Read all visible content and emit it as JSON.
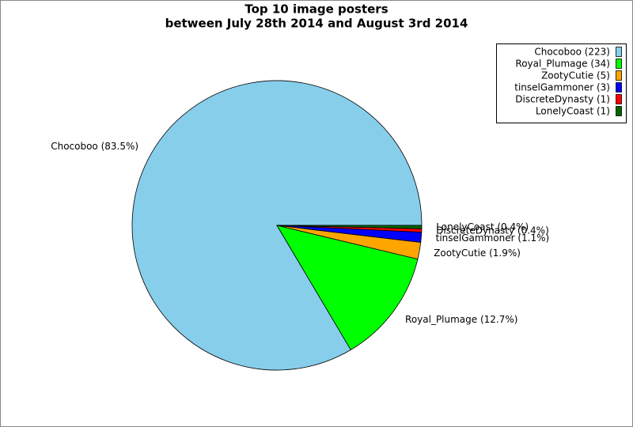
{
  "chart_data": {
    "type": "pie",
    "title": "Top 10 image posters",
    "subtitle": "between July 28th 2014 and August 3rd 2014",
    "legend": [
      "Chocoboo (223)",
      "Royal_Plumage (34)",
      "ZootyCutie (5)",
      "tinselGammoner (3)",
      "DiscreteDynasty (1)",
      "LonelyCoast (1)"
    ],
    "values": [
      223,
      34,
      5,
      3,
      1,
      1
    ],
    "value_labels": [
      "Chocoboo (83.5%)",
      "Royal_Plumage (12.7%)",
      "ZootyCutie (1.9%)",
      "tinselGammoner (1.1%)",
      "DiscreteDynasty (0.4%)",
      "LonelyCoast (0.4%)"
    ],
    "colors": [
      "#87ceeb",
      "#00ff00",
      "#ffa500",
      "#0000ff",
      "#ff0000",
      "#006400"
    ],
    "legend_position": "upper right"
  }
}
